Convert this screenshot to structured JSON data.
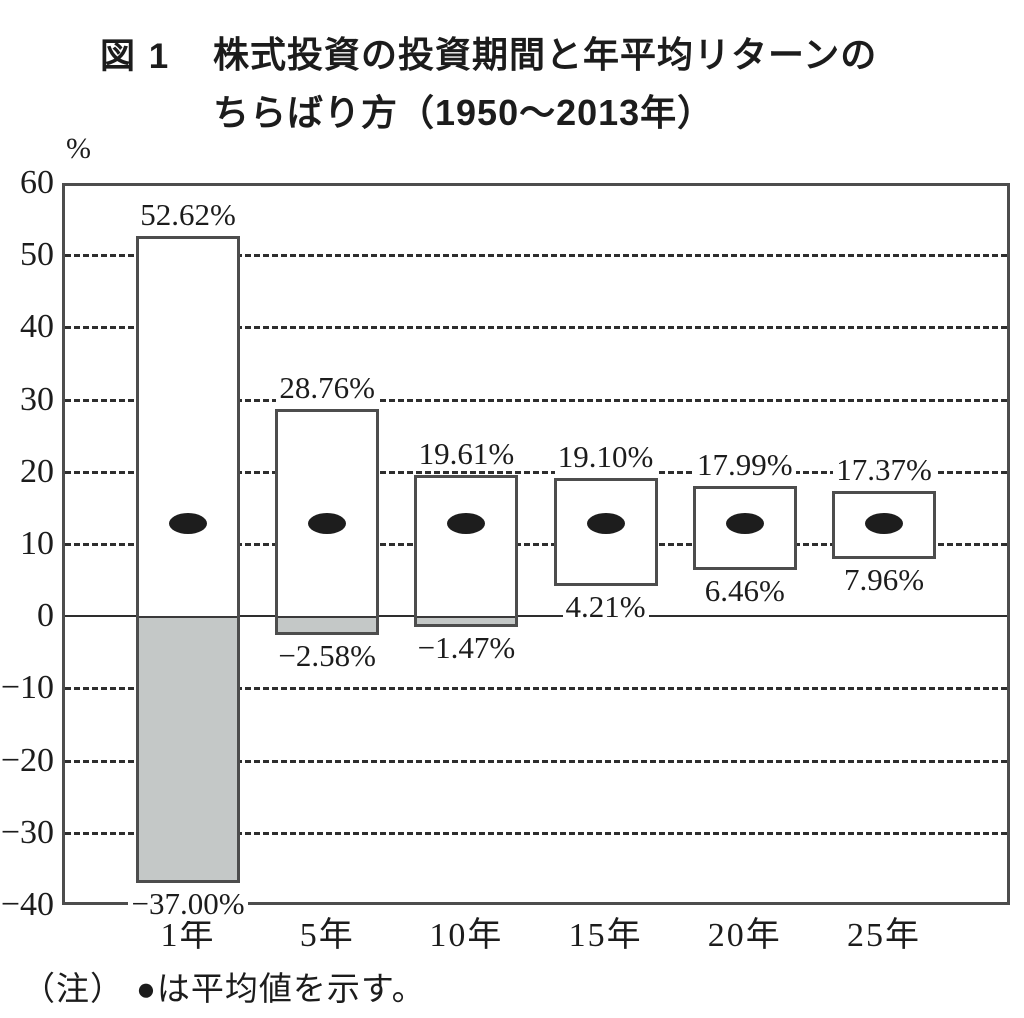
{
  "figure": {
    "label": "図 1",
    "title_line1": "株式投資の投資期間と年平均リターンの",
    "title_line2": "ちらばり方（1950～2013年）",
    "unit_label": "%",
    "note_prefix": "（注）",
    "note_text": "●は平均値を示す。"
  },
  "chart_data": {
    "type": "bar",
    "subtype": "floating-range-bar (max-min range per holding period, dot = mean)",
    "title": "株式投資の投資期間と年平均リターンのちらばり方（1950～2013年）",
    "categories": [
      "1年",
      "5年",
      "10年",
      "15年",
      "20年",
      "25年"
    ],
    "series": [
      {
        "name": "max",
        "values": [
          52.62,
          28.76,
          19.61,
          19.1,
          17.99,
          17.37
        ]
      },
      {
        "name": "min",
        "values": [
          -37.0,
          -2.58,
          -1.47,
          4.21,
          6.46,
          7.96
        ]
      },
      {
        "name": "mean-marker (●, unlabeled, estimated from gridlines)",
        "values": [
          12.8,
          12.8,
          12.8,
          12.8,
          12.8,
          12.8
        ]
      }
    ],
    "max_labels": [
      "52.62%",
      "28.76%",
      "19.61%",
      "19.10%",
      "17.99%",
      "17.37%"
    ],
    "min_labels": [
      "−37.00%",
      "−2.58%",
      "−1.47%",
      "4.21%",
      "6.46%",
      "7.96%"
    ],
    "xlabel": "",
    "ylabel": "%",
    "ylim": [
      -40,
      60
    ],
    "yticks": [
      60,
      50,
      40,
      30,
      20,
      10,
      0,
      -10,
      -20,
      -30,
      -40
    ],
    "grid": "horizontal dashed every 10, solid line at 0, solid frame at 60 and -40",
    "legend_position": "none",
    "negative_region": "shaded gray below 0 inside bars"
  },
  "style": {
    "background": "#ffffff",
    "text_color": "#1c1c1c",
    "frame_color": "#4d4d4d",
    "bar_border_color": "#4d4d4d",
    "bar_fill": "#ffffff",
    "negative_fill": "#c4c8c7",
    "dot_color": "#1d1d1d",
    "gridline_color": "#2e2e2e"
  }
}
